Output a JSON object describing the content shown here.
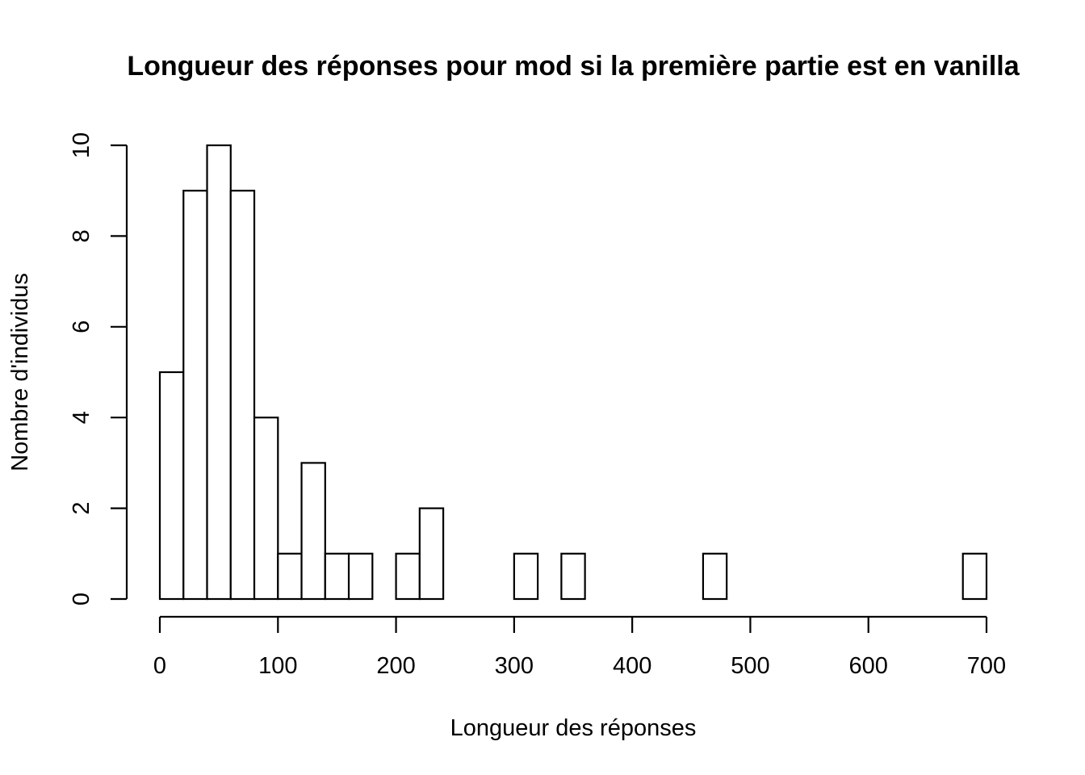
{
  "chart_data": {
    "type": "bar",
    "title": "Longueur des réponses pour mod si la première partie est en vanilla",
    "xlabel": "Longueur des réponses",
    "ylabel": "Nombre d'individus",
    "xlim": [
      0,
      700
    ],
    "ylim": [
      0,
      10
    ],
    "bin_width": 20,
    "bin_starts": [
      0,
      20,
      40,
      60,
      80,
      100,
      120,
      140,
      160,
      180,
      200,
      220,
      240,
      260,
      280,
      300,
      320,
      340,
      360,
      380,
      400,
      420,
      440,
      460,
      480,
      500,
      520,
      540,
      560,
      580,
      600,
      620,
      640,
      660,
      680
    ],
    "counts": [
      5,
      9,
      10,
      9,
      4,
      1,
      3,
      1,
      1,
      0,
      1,
      2,
      0,
      0,
      0,
      1,
      0,
      1,
      0,
      0,
      0,
      0,
      0,
      1,
      0,
      0,
      0,
      0,
      0,
      0,
      0,
      0,
      0,
      0,
      1
    ],
    "x_ticks": [
      0,
      100,
      200,
      300,
      400,
      500,
      600,
      700
    ],
    "x_tick_labels": [
      "0",
      "100",
      "200",
      "300",
      "400",
      "500",
      "600",
      "700"
    ],
    "y_ticks": [
      0,
      2,
      4,
      6,
      8,
      10
    ],
    "y_tick_labels": [
      "0",
      "2",
      "4",
      "6",
      "8",
      "10"
    ],
    "grid": false,
    "colors": {
      "bar_fill": "#ffffff",
      "bar_stroke": "#000000",
      "background": "#ffffff"
    }
  }
}
